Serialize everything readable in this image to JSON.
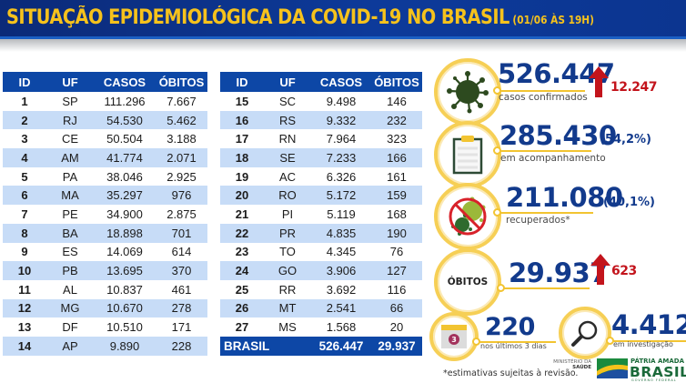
{
  "header": {
    "title": "SITUAÇÃO EPIDEMIOLÓGICA DA COVID-19 NO BRASIL",
    "subtitle": "(01/06 ÀS 19H)"
  },
  "table": {
    "columns": [
      "ID",
      "UF",
      "CASOS",
      "ÓBITOS"
    ],
    "left_rows": [
      {
        "id": "1",
        "uf": "SP",
        "casos": "111.296",
        "obitos": "7.667"
      },
      {
        "id": "2",
        "uf": "RJ",
        "casos": "54.530",
        "obitos": "5.462"
      },
      {
        "id": "3",
        "uf": "CE",
        "casos": "50.504",
        "obitos": "3.188"
      },
      {
        "id": "4",
        "uf": "AM",
        "casos": "41.774",
        "obitos": "2.071"
      },
      {
        "id": "5",
        "uf": "PA",
        "casos": "38.046",
        "obitos": "2.925"
      },
      {
        "id": "6",
        "uf": "MA",
        "casos": "35.297",
        "obitos": "976"
      },
      {
        "id": "7",
        "uf": "PE",
        "casos": "34.900",
        "obitos": "2.875"
      },
      {
        "id": "8",
        "uf": "BA",
        "casos": "18.898",
        "obitos": "701"
      },
      {
        "id": "9",
        "uf": "ES",
        "casos": "14.069",
        "obitos": "614"
      },
      {
        "id": "10",
        "uf": "PB",
        "casos": "13.695",
        "obitos": "370"
      },
      {
        "id": "11",
        "uf": "AL",
        "casos": "10.837",
        "obitos": "461"
      },
      {
        "id": "12",
        "uf": "MG",
        "casos": "10.670",
        "obitos": "278"
      },
      {
        "id": "13",
        "uf": "DF",
        "casos": "10.510",
        "obitos": "171"
      },
      {
        "id": "14",
        "uf": "AP",
        "casos": "9.890",
        "obitos": "228"
      }
    ],
    "right_rows": [
      {
        "id": "15",
        "uf": "SC",
        "casos": "9.498",
        "obitos": "146"
      },
      {
        "id": "16",
        "uf": "RS",
        "casos": "9.332",
        "obitos": "232"
      },
      {
        "id": "17",
        "uf": "RN",
        "casos": "7.964",
        "obitos": "323"
      },
      {
        "id": "18",
        "uf": "SE",
        "casos": "7.233",
        "obitos": "166"
      },
      {
        "id": "19",
        "uf": "AC",
        "casos": "6.326",
        "obitos": "161"
      },
      {
        "id": "20",
        "uf": "RO",
        "casos": "5.172",
        "obitos": "159"
      },
      {
        "id": "21",
        "uf": "PI",
        "casos": "5.119",
        "obitos": "168"
      },
      {
        "id": "22",
        "uf": "PR",
        "casos": "4.835",
        "obitos": "190"
      },
      {
        "id": "23",
        "uf": "TO",
        "casos": "4.345",
        "obitos": "76"
      },
      {
        "id": "24",
        "uf": "GO",
        "casos": "3.906",
        "obitos": "127"
      },
      {
        "id": "25",
        "uf": "RR",
        "casos": "3.692",
        "obitos": "116"
      },
      {
        "id": "26",
        "uf": "MT",
        "casos": "2.541",
        "obitos": "66"
      },
      {
        "id": "27",
        "uf": "MS",
        "casos": "1.568",
        "obitos": "20"
      }
    ],
    "total": {
      "label": "BRASIL",
      "casos": "526.447",
      "obitos": "29.937"
    }
  },
  "stats": {
    "confirmed": {
      "value": "526.447",
      "caption": "casos confirmados",
      "delta": "12.247",
      "icon": "virus-icon"
    },
    "monitoring": {
      "value": "285.430",
      "percent": "(54,2%)",
      "caption": "em acompanhamento",
      "icon": "clipboard-icon"
    },
    "recovered": {
      "value": "211.080",
      "percent": "(40,1%)",
      "caption": "recuperados*",
      "icon": "no-virus-icon"
    },
    "deaths": {
      "label": "ÓBITOS",
      "value": "29.937",
      "delta": "623"
    },
    "last3days": {
      "value": "220",
      "caption": "nos últimos 3 dias",
      "calendar_number": "3",
      "icon": "calendar-icon"
    },
    "investigation": {
      "value": "4.412",
      "caption": "em investigação",
      "icon": "magnifier-icon"
    }
  },
  "footer": {
    "footnote": "*estimativas sujeitas à revisão.",
    "ministry_line1": "MINISTÉRIO DA",
    "ministry_line2": "SAÚDE",
    "logo_top": "PÁTRIA AMADA",
    "logo_main": "BRASIL",
    "logo_bottom": "GOVERNO FEDERAL"
  },
  "colors": {
    "header_bg": "#0d3a9a",
    "title": "#f6c21c",
    "table_header": "#0d47a6",
    "row_alt": "#c7dcf7",
    "stat_number": "#123a8c",
    "delta": "#c3141c",
    "ring": "#f6cf55"
  }
}
